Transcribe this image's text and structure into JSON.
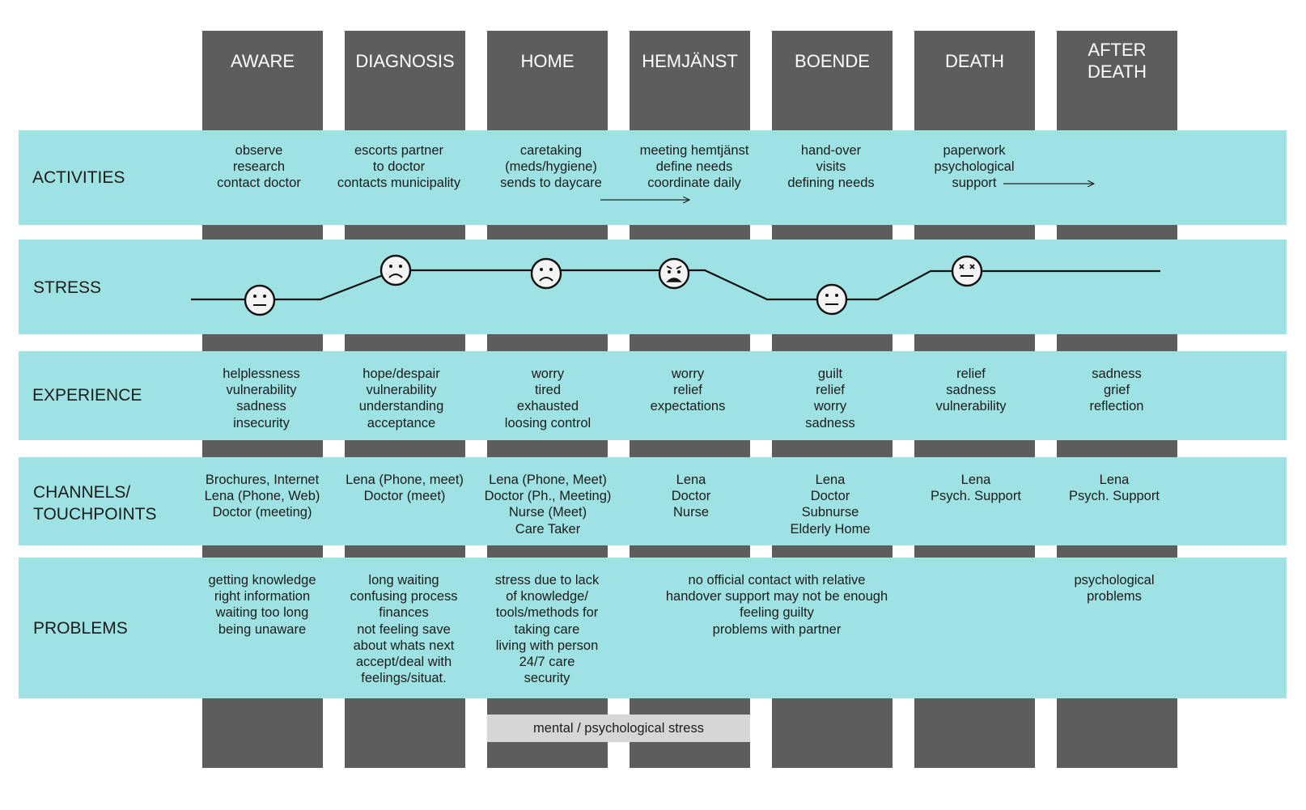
{
  "phases": [
    {
      "label": "AWARE"
    },
    {
      "label": "DIAGNOSIS"
    },
    {
      "label": "HOME"
    },
    {
      "label": "HEMJÄNST"
    },
    {
      "label": "BOENDE"
    },
    {
      "label": "DEATH"
    },
    {
      "label": "AFTER\nDEATH"
    }
  ],
  "rows": {
    "activities": {
      "label": "ACTIVITIES",
      "cells": [
        "observe\nresearch\ncontact doctor",
        "escorts partner\nto doctor\ncontacts municipality",
        "caretaking\n(meds/hygiene)\nsends to daycare",
        "meeting hemtjänst\ndefine needs\ncoordinate daily",
        "hand-over\nvisits\ndefining needs",
        "paperwork\npsychological\nsupport",
        ""
      ]
    },
    "stress": {
      "label": "STRESS",
      "faces": [
        "neutral",
        "sad",
        "sad",
        "distressed",
        "neutral",
        "dizzy"
      ]
    },
    "experience": {
      "label": "EXPERIENCE",
      "cells": [
        "helplessness\nvulnerability\nsadness\ninsecurity",
        "hope/despair\nvulnerability\nunderstanding\nacceptance",
        "worry\ntired\nexhausted\nloosing control",
        "worry\nrelief\nexpectations",
        "guilt\nrelief\nworry\nsadness",
        "relief\nsadness\nvulnerability",
        "sadness\ngrief\nreflection"
      ]
    },
    "channels": {
      "label": "CHANNELS/\nTOUCHPOINTS",
      "cells": [
        "Brochures, Internet\nLena (Phone, Web)\nDoctor (meeting)",
        "Lena (Phone, meet)\nDoctor (meet)",
        "Lena (Phone, Meet)\nDoctor (Ph., Meeting)\nNurse (Meet)\nCare Taker",
        "Lena\nDoctor\nNurse",
        "Lena\nDoctor\nSubnurse\nElderly Home",
        "Lena\nPsych. Support",
        "Lena\nPsych. Support"
      ]
    },
    "problems": {
      "label": "PROBLEMS",
      "cells": [
        "getting knowledge\nright information\nwaiting too long\nbeing unaware",
        "long waiting\nconfusing process\nfinances\nnot feeling save\nabout whats next\naccept/deal with\nfeelings/situat.",
        "stress due to lack\nof knowledge/\ntools/methods for\ntaking care\nliving with person\n24/7 care\nsecurity",
        "no official contact with relative\nhandover support may not be enough\nfeeling guilty\nproblems with partner",
        "psychological\nproblems"
      ]
    }
  },
  "footer_note": "mental / psychological stress",
  "colors": {
    "column": "#5d5d5d",
    "band": "#9ee2e3",
    "note": "#d6d6d6",
    "face": "#f4f4f4"
  }
}
